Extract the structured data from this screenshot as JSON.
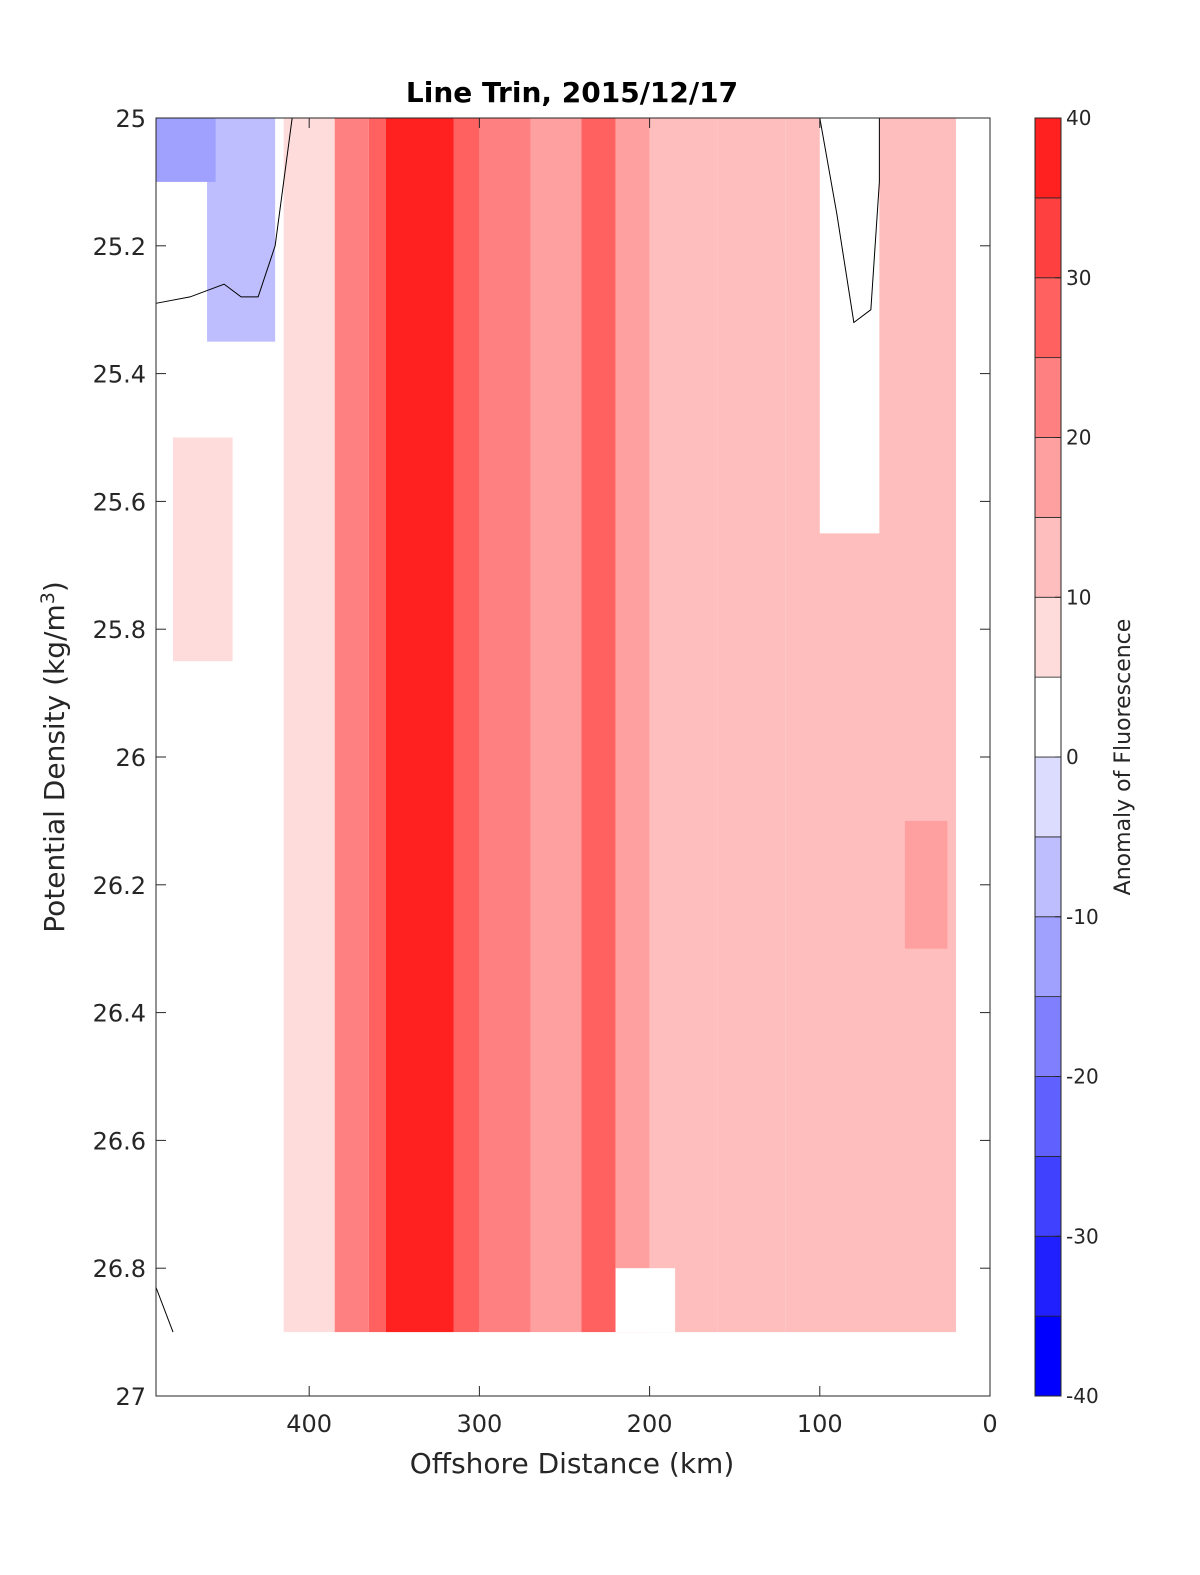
{
  "chart_data": {
    "type": "heatmap",
    "title": "Line Trin, 2015/12/17",
    "xlabel": "Offshore Distance (km)",
    "ylabel_main": "Potential Density (kg/m",
    "ylabel_sup": "3",
    "ylabel_close": ")",
    "xlim": [
      490,
      0
    ],
    "ylim": [
      25,
      27
    ],
    "x_reversed": true,
    "y_reversed": true,
    "xticks": [
      400,
      300,
      200,
      100,
      0
    ],
    "xtick_labels": [
      "400",
      "300",
      "200",
      "100",
      "0"
    ],
    "yticks": [
      25,
      25.2,
      25.4,
      25.6,
      25.8,
      26,
      26.2,
      26.4,
      26.6,
      26.8,
      27
    ],
    "ytick_labels": [
      "25",
      "25.2",
      "25.4",
      "25.6",
      "25.8",
      "26",
      "26.2",
      "26.4",
      "26.6",
      "26.8",
      "27"
    ],
    "colorbar": {
      "label": "Anomaly of Fluorescence",
      "range": [
        -40,
        40
      ],
      "levels": [
        -40,
        -35,
        -30,
        -25,
        -20,
        -15,
        -10,
        -5,
        0,
        5,
        10,
        15,
        20,
        25,
        30,
        35,
        40
      ],
      "tick_values": [
        -40,
        -30,
        -20,
        -10,
        0,
        10,
        20,
        30,
        40
      ],
      "tick_labels": [
        "-40",
        "-30",
        "-20",
        "-10",
        "0",
        "10",
        "20",
        "30",
        "40"
      ],
      "colors": [
        "#0000ff",
        "#2020ff",
        "#4040ff",
        "#6060ff",
        "#8080ff",
        "#a0a0ff",
        "#bebeff",
        "#dcdcff",
        "#ffffff",
        "#ffdcdc",
        "#ffbebe",
        "#ffa0a0",
        "#ff8080",
        "#ff6060",
        "#ff4040",
        "#ff2020",
        "#ff0000"
      ]
    },
    "data_extent": {
      "x": [
        490,
        10
      ],
      "y_bottom": 26.9
    },
    "columns": [
      {
        "x": [
          415,
          385
        ],
        "value": 8
      },
      {
        "x": [
          385,
          365
        ],
        "value": 20
      },
      {
        "x": [
          365,
          355
        ],
        "value": 28
      },
      {
        "x": [
          355,
          315
        ],
        "value": 38
      },
      {
        "x": [
          315,
          300
        ],
        "value": 28
      },
      {
        "x": [
          300,
          270
        ],
        "value": 20
      },
      {
        "x": [
          270,
          240
        ],
        "value": 18
      },
      {
        "x": [
          240,
          220
        ],
        "value": 26
      },
      {
        "x": [
          220,
          200
        ],
        "value": 18
      },
      {
        "x": [
          200,
          160
        ],
        "value": 10
      },
      {
        "x": [
          160,
          120
        ],
        "value": 13
      },
      {
        "x": [
          120,
          20
        ],
        "value": 10
      }
    ],
    "patches": [
      {
        "x": [
          460,
          420
        ],
        "y": [
          25.0,
          25.35
        ],
        "value": -8
      },
      {
        "x": [
          490,
          455
        ],
        "y": [
          25.0,
          25.1
        ],
        "value": -12
      },
      {
        "x": [
          480,
          445
        ],
        "y": [
          25.5,
          25.85
        ],
        "value": 6
      },
      {
        "x": [
          100,
          65
        ],
        "y": [
          25.0,
          25.65
        ],
        "value": 2
      },
      {
        "x": [
          50,
          25
        ],
        "y": [
          26.1,
          26.3
        ],
        "value": 15
      },
      {
        "x": [
          220,
          185
        ],
        "y": [
          26.8,
          26.9
        ],
        "value": 2
      }
    ]
  }
}
